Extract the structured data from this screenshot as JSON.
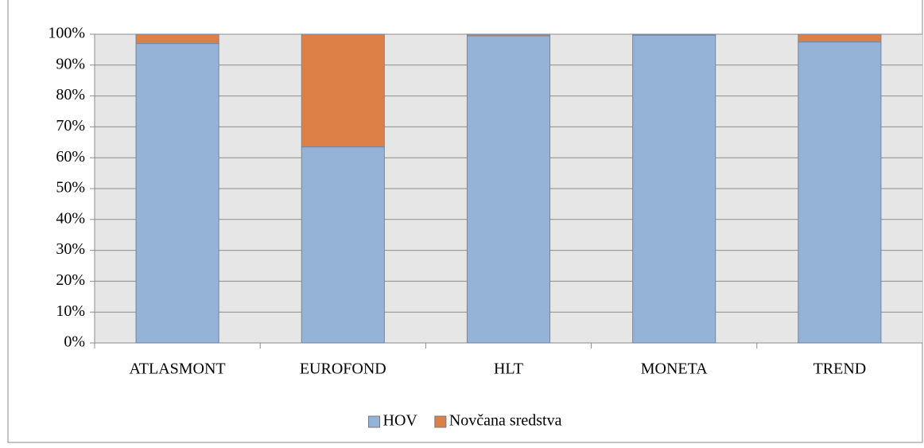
{
  "chart_data": {
    "type": "stacked_bar",
    "categories": [
      "ATLASMONT",
      "EUROFOND",
      "HLT",
      "MONETA",
      "TREND"
    ],
    "series": [
      {
        "name": "HOV",
        "color": "#95b3d7",
        "values": [
          97,
          63.5,
          99.5,
          99.7,
          97.5
        ]
      },
      {
        "name": "Novčana sredstva",
        "color": "#dd8047",
        "values": [
          3,
          36.5,
          0.5,
          0.3,
          2.5
        ]
      }
    ],
    "ylim": [
      0,
      100
    ],
    "yticks": [
      {
        "value": 0,
        "label": "0%"
      },
      {
        "value": 10,
        "label": "10%"
      },
      {
        "value": 20,
        "label": "20%"
      },
      {
        "value": 30,
        "label": "30%"
      },
      {
        "value": 40,
        "label": "40%"
      },
      {
        "value": 50,
        "label": "50%"
      },
      {
        "value": 60,
        "label": "60%"
      },
      {
        "value": 70,
        "label": "70%"
      },
      {
        "value": 80,
        "label": "80%"
      },
      {
        "value": 90,
        "label": "90%"
      },
      {
        "value": 100,
        "label": "100%"
      }
    ],
    "grid": true,
    "legend": "bottom"
  }
}
